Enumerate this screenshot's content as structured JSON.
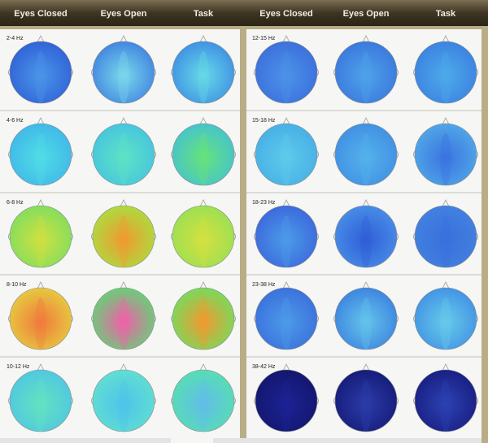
{
  "panels": [
    {
      "columns": [
        "Eyes Closed",
        "Eyes Open",
        "Task"
      ],
      "bands": [
        "2-4 Hz",
        "4-6 Hz",
        "6-8 Hz",
        "8-10 Hz",
        "10-12 Hz"
      ]
    },
    {
      "columns": [
        "Eyes Closed",
        "Eyes Open",
        "Task"
      ],
      "bands": [
        "12-15 Hz",
        "15-18 Hz",
        "18-23 Hz",
        "23-38 Hz",
        "38-42 Hz"
      ]
    }
  ]
}
